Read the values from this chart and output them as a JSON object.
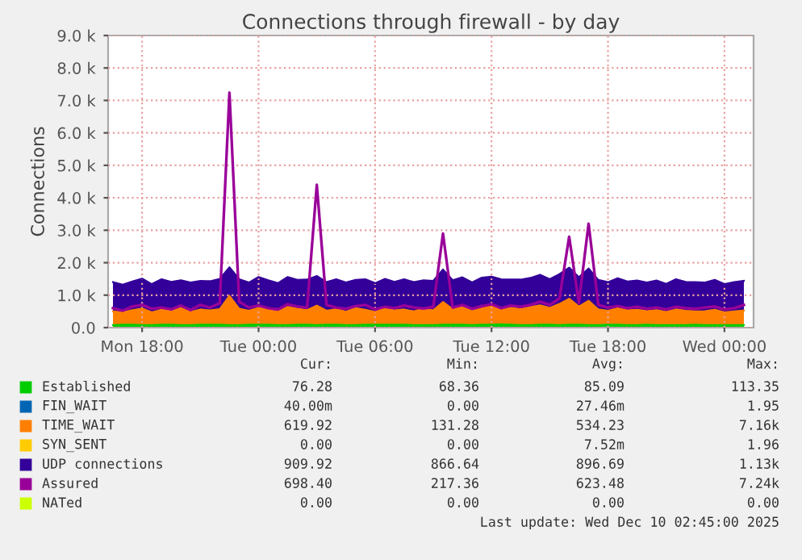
{
  "chart_data": {
    "type": "area",
    "title": "Connections through firewall - by day",
    "ylabel": "Connections",
    "stacked": true,
    "grid": true,
    "legend": "bottom",
    "x": [
      "2025-12-08T16:30",
      "2025-12-08T17:00",
      "2025-12-08T17:30",
      "2025-12-08T18:00",
      "2025-12-08T18:30",
      "2025-12-08T19:00",
      "2025-12-08T19:30",
      "2025-12-08T20:00",
      "2025-12-08T20:30",
      "2025-12-08T21:00",
      "2025-12-08T21:30",
      "2025-12-08T22:00",
      "2025-12-08T22:30",
      "2025-12-08T23:00",
      "2025-12-08T23:30",
      "2025-12-09T00:00",
      "2025-12-09T00:30",
      "2025-12-09T01:00",
      "2025-12-09T01:30",
      "2025-12-09T02:00",
      "2025-12-09T02:30",
      "2025-12-09T03:00",
      "2025-12-09T03:30",
      "2025-12-09T04:00",
      "2025-12-09T04:30",
      "2025-12-09T05:00",
      "2025-12-09T05:30",
      "2025-12-09T06:00",
      "2025-12-09T06:30",
      "2025-12-09T07:00",
      "2025-12-09T07:30",
      "2025-12-09T08:00",
      "2025-12-09T08:30",
      "2025-12-09T09:00",
      "2025-12-09T09:30",
      "2025-12-09T10:00",
      "2025-12-09T10:30",
      "2025-12-09T11:00",
      "2025-12-09T11:30",
      "2025-12-09T12:00",
      "2025-12-09T12:30",
      "2025-12-09T13:00",
      "2025-12-09T13:30",
      "2025-12-09T14:00",
      "2025-12-09T14:30",
      "2025-12-09T15:00",
      "2025-12-09T15:30",
      "2025-12-09T16:00",
      "2025-12-09T16:30",
      "2025-12-09T17:00",
      "2025-12-09T17:30",
      "2025-12-09T18:00",
      "2025-12-09T18:30",
      "2025-12-09T19:00",
      "2025-12-09T19:30",
      "2025-12-09T20:00",
      "2025-12-09T20:30",
      "2025-12-09T21:00",
      "2025-12-09T21:30",
      "2025-12-09T22:00",
      "2025-12-09T22:30",
      "2025-12-09T23:00",
      "2025-12-09T23:30",
      "2025-12-10T00:00",
      "2025-12-10T00:30",
      "2025-12-10T01:00"
    ],
    "xlim": [
      "2025-12-08T16:15",
      "2025-12-10T01:30"
    ],
    "xticks": [
      {
        "value": "2025-12-08T18:00",
        "label": "Mon 18:00"
      },
      {
        "value": "2025-12-09T00:00",
        "label": "Tue 00:00"
      },
      {
        "value": "2025-12-09T06:00",
        "label": "Tue 06:00"
      },
      {
        "value": "2025-12-09T12:00",
        "label": "Tue 12:00"
      },
      {
        "value": "2025-12-09T18:00",
        "label": "Tue 18:00"
      },
      {
        "value": "2025-12-10T00:00",
        "label": "Wed 00:00"
      }
    ],
    "ylim": [
      0,
      9000
    ],
    "yticks": [
      {
        "value": 0,
        "label": "0.0"
      },
      {
        "value": 1000,
        "label": "1.0 k"
      },
      {
        "value": 2000,
        "label": "2.0 k"
      },
      {
        "value": 3000,
        "label": "3.0 k"
      },
      {
        "value": 4000,
        "label": "4.0 k"
      },
      {
        "value": 5000,
        "label": "5.0 k"
      },
      {
        "value": 6000,
        "label": "6.0 k"
      },
      {
        "value": 7000,
        "label": "7.0 k"
      },
      {
        "value": 8000,
        "label": "8.0 k"
      },
      {
        "value": 9000,
        "label": "9.0 k"
      }
    ],
    "series": [
      {
        "name": "Established",
        "color": "#00cc00",
        "values": [
          80,
          90,
          90,
          80,
          80,
          90,
          90,
          80,
          80,
          90,
          90,
          90,
          80,
          80,
          90,
          90,
          90,
          80,
          80,
          90,
          90,
          80,
          90,
          90,
          80,
          80,
          90,
          90,
          90,
          90,
          90,
          80,
          80,
          80,
          90,
          90,
          90,
          80,
          90,
          90,
          100,
          90,
          80,
          80,
          90,
          90,
          80,
          90,
          90,
          80,
          80,
          90,
          90,
          80,
          80,
          90,
          80,
          80,
          80,
          80,
          90,
          80,
          80,
          80,
          80,
          80
        ]
      },
      {
        "name": "FIN_WAIT",
        "color": "#0066b3",
        "values": [
          null,
          null,
          null,
          null,
          null,
          null,
          null,
          null,
          null,
          null,
          null,
          null,
          null,
          null,
          null,
          null,
          null,
          null,
          null,
          null,
          null,
          null,
          null,
          null,
          null,
          null,
          null,
          null,
          null,
          null,
          null,
          null,
          null,
          null,
          null,
          null,
          null,
          null,
          null,
          null,
          null,
          null,
          null,
          null,
          null,
          null,
          null,
          null,
          null,
          null,
          null,
          null,
          null,
          null,
          null,
          null,
          null,
          null,
          null,
          null,
          null,
          null,
          null,
          null,
          null,
          null
        ]
      },
      {
        "name": "TIME_WAIT",
        "color": "#ff8000",
        "values": [
          420,
          380,
          450,
          510,
          390,
          460,
          430,
          520,
          400,
          470,
          440,
          480,
          900,
          500,
          430,
          520,
          470,
          410,
          560,
          490,
          450,
          600,
          430,
          480,
          410,
          520,
          460,
          390,
          500,
          440,
          470,
          420,
          510,
          450,
          700,
          480,
          540,
          430,
          500,
          580,
          460,
          520,
          490,
          550,
          600,
          520,
          650,
          800,
          560,
          750,
          480,
          430,
          510,
          450,
          470,
          420,
          460,
          400,
          480,
          440,
          410,
          430,
          470,
          390,
          420,
          450
        ]
      },
      {
        "name": "SYN_SENT",
        "color": "#ffcc00",
        "values": [
          null,
          null,
          null,
          null,
          null,
          null,
          null,
          null,
          null,
          null,
          null,
          null,
          null,
          null,
          null,
          null,
          null,
          null,
          null,
          null,
          null,
          null,
          null,
          null,
          null,
          null,
          null,
          null,
          null,
          null,
          null,
          null,
          null,
          null,
          null,
          null,
          null,
          null,
          null,
          null,
          null,
          null,
          null,
          null,
          null,
          null,
          null,
          null,
          null,
          null,
          null,
          null,
          null,
          null,
          null,
          null,
          null,
          null,
          null,
          null,
          null,
          null,
          null,
          null,
          null,
          null
        ]
      },
      {
        "name": "UDP connections",
        "color": "#330099",
        "values": [
          900,
          850,
          880,
          920,
          870,
          940,
          890,
          860,
          910,
          880,
          900,
          930,
          880,
          910,
          870,
          950,
          900,
          880,
          920,
          890,
          940,
          910,
          880,
          920,
          900,
          870,
          940,
          890,
          910,
          880,
          930,
          900,
          870,
          910,
          1000,
          890,
          920,
          880,
          950,
          900,
          930,
          870,
          910,
          900,
          940,
          880,
          920,
          960,
          900,
          990,
          910,
          880,
          920,
          890,
          900,
          880,
          910,
          870,
          930,
          890,
          900,
          880,
          920,
          870,
          900,
          910
        ]
      },
      {
        "name": "Assured",
        "type": "line",
        "color": "#990099",
        "values": [
          600,
          520,
          650,
          700,
          580,
          620,
          560,
          680,
          540,
          700,
          620,
          750,
          7240,
          800,
          620,
          680,
          600,
          560,
          720,
          650,
          620,
          4400,
          700,
          620,
          580,
          660,
          700,
          560,
          640,
          600,
          680,
          620,
          590,
          640,
          2900,
          620,
          700,
          580,
          660,
          720,
          600,
          680,
          640,
          700,
          800,
          700,
          900,
          2800,
          760,
          3200,
          700,
          620,
          660,
          600,
          640,
          580,
          620,
          560,
          640,
          600,
          580,
          620,
          650,
          560,
          600,
          700
        ]
      },
      {
        "name": "NATed",
        "type": "line",
        "color": "#ccff00",
        "values": [
          null,
          null,
          null,
          null,
          null,
          null,
          null,
          null,
          null,
          null,
          null,
          null,
          null,
          null,
          null,
          null,
          null,
          null,
          null,
          null,
          null,
          null,
          null,
          null,
          null,
          null,
          null,
          null,
          null,
          null,
          null,
          null,
          null,
          null,
          null,
          null,
          null,
          null,
          null,
          null,
          null,
          null,
          null,
          null,
          null,
          null,
          null,
          null,
          null,
          null,
          null,
          null,
          null,
          null,
          null,
          null,
          null,
          null,
          null,
          null,
          null,
          null,
          null,
          null,
          null,
          null
        ]
      }
    ],
    "annotations": [
      "Cur:",
      "Min:",
      "Avg:",
      "Max:",
      "76.28",
      "68.36",
      "85.09",
      "113.35",
      "40.00m",
      "0.00",
      "27.46m",
      "1.95",
      "619.92",
      "131.28",
      "534.23",
      "7.16k",
      "0.00",
      "0.00",
      "7.52m",
      "1.96",
      "909.92",
      "866.64",
      "896.69",
      "1.13k",
      "698.40",
      "217.36",
      "623.48",
      "7.24k",
      "0.00",
      "0.00",
      "0.00",
      "0.00",
      "Last update: Wed Dec 10 02:45:00 2025"
    ]
  }
}
